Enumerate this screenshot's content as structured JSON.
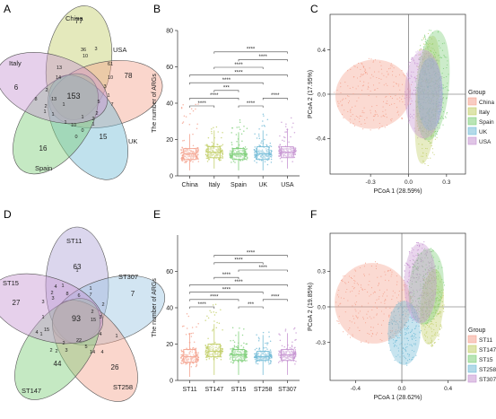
{
  "panel_letters": [
    "A",
    "B",
    "C",
    "D",
    "E",
    "F"
  ],
  "colors": {
    "China": "#f4a38f",
    "Italy": "#c3cf6a",
    "Spain": "#7fcf7a",
    "UK": "#74bcd7",
    "USA": "#c796d2",
    "ST11": "#f4a38f",
    "ST147": "#c3cf6a",
    "ST15": "#7fcf7a",
    "ST258": "#74bcd7",
    "ST307": "#c796d2"
  },
  "chart_data": [
    {
      "panel": "A",
      "type": "venn",
      "sets": [
        "China",
        "USA",
        "UK",
        "Spain",
        "Italy"
      ],
      "unique": {
        "China": 77,
        "USA": 78,
        "UK": 15,
        "Spain": 16,
        "Italy": 6
      },
      "core": 153,
      "region_counts": [
        "3",
        "10",
        "36",
        "61",
        "13",
        "10",
        "14",
        "3",
        "5",
        "2",
        "7",
        "13",
        "2",
        "1",
        "2",
        "2",
        "1",
        "1",
        "10",
        "0",
        "1",
        "1",
        "1",
        "8",
        "1",
        "0"
      ]
    },
    {
      "panel": "B",
      "type": "box",
      "categories": [
        "China",
        "Italy",
        "Spain",
        "UK",
        "USA"
      ],
      "ylabel": "The number of ARGs",
      "ylim": [
        0,
        80
      ],
      "yticks": [
        0,
        20,
        40,
        60,
        80
      ],
      "median": [
        12,
        13,
        12,
        12,
        13
      ],
      "q1": [
        9,
        10,
        9,
        9,
        10
      ],
      "q3": [
        15,
        16,
        15,
        16,
        16
      ],
      "whisker_high": [
        23,
        25,
        24,
        25,
        26
      ],
      "whisker_low": [
        3,
        4,
        3,
        3,
        4
      ],
      "jitter_max": [
        40,
        27,
        32,
        35,
        33
      ],
      "significance": [
        {
          "pair": [
            "China",
            "Italy"
          ],
          "label": "****"
        },
        {
          "pair": [
            "China",
            "Spain"
          ],
          "label": "****"
        },
        {
          "pair": [
            "Italy",
            "Spain"
          ],
          "label": "***"
        },
        {
          "pair": [
            "China",
            "UK"
          ],
          "label": "****"
        },
        {
          "pair": [
            "China",
            "USA"
          ],
          "label": "****"
        },
        {
          "pair": [
            "Italy",
            "UK"
          ],
          "label": "****"
        },
        {
          "pair": [
            "Spain",
            "UK"
          ],
          "label": "****"
        },
        {
          "pair": [
            "Spain",
            "USA"
          ],
          "label": "****"
        },
        {
          "pair": [
            "Italy",
            "USA"
          ],
          "label": "****"
        },
        {
          "pair": [
            "UK",
            "USA"
          ],
          "label": "****"
        }
      ]
    },
    {
      "panel": "C",
      "type": "scatter",
      "xlabel": "PCoA 1 (28.59%)",
      "ylabel": "PCoA 2 (17.95%)",
      "xticks": [
        "-0.3",
        "0.0",
        "0.3"
      ],
      "xtick_values": [
        -0.3,
        0.0,
        0.3
      ],
      "yticks": [
        "0.4",
        "0.0",
        "-0.4"
      ],
      "ytick_values": [
        0.4,
        0.0,
        -0.4
      ],
      "xlim": [
        -0.62,
        0.45
      ],
      "ylim": [
        -0.72,
        0.72
      ],
      "legend_title": "Group",
      "legend_position": "right",
      "groups": [
        {
          "name": "China",
          "center": [
            -0.28,
            0.0
          ],
          "rx": 0.3,
          "ry": 0.31,
          "rot": -15
        },
        {
          "name": "Italy",
          "center": [
            0.15,
            -0.05
          ],
          "rx": 0.09,
          "ry": 0.58,
          "rot": 5
        },
        {
          "name": "Spain",
          "center": [
            0.19,
            0.08
          ],
          "rx": 0.13,
          "ry": 0.5,
          "rot": 5
        },
        {
          "name": "UK",
          "center": [
            0.17,
            0.0
          ],
          "rx": 0.1,
          "ry": 0.33,
          "rot": 0
        },
        {
          "name": "USA",
          "center": [
            0.12,
            0.0
          ],
          "rx": 0.15,
          "ry": 0.4,
          "rot": 0
        }
      ]
    },
    {
      "panel": "D",
      "type": "venn",
      "sets": [
        "ST11",
        "ST307",
        "ST258",
        "ST147",
        "ST15"
      ],
      "unique": {
        "ST11": 63,
        "ST307": 7,
        "ST258": 26,
        "ST147": 44,
        "ST15": 27
      },
      "core": 93,
      "region_counts": [
        "8",
        "6",
        "7",
        "2",
        "2",
        "3",
        "15",
        "4",
        "22",
        "2",
        "3",
        "5",
        "14",
        "4",
        "2",
        "2",
        "1",
        "15",
        "4",
        "4",
        "3",
        "1",
        "2",
        "3",
        "1",
        "1",
        "1",
        "1"
      ]
    },
    {
      "panel": "E",
      "type": "box",
      "categories": [
        "ST11",
        "ST147",
        "ST15",
        "ST258",
        "ST307"
      ],
      "ylabel": "The number of ARGs",
      "ylim": [
        0,
        80
      ],
      "yticks": [
        0,
        20,
        40,
        60
      ],
      "median": [
        13,
        16,
        14,
        13,
        14
      ],
      "q1": [
        10,
        13,
        11,
        11,
        11
      ],
      "q3": [
        17,
        20,
        17,
        16,
        17
      ],
      "whisker_high": [
        26,
        31,
        27,
        25,
        26
      ],
      "whisker_low": [
        2,
        3,
        3,
        3,
        3
      ],
      "jitter_max": [
        38,
        42,
        30,
        27,
        29
      ],
      "significance": [
        {
          "pair": [
            "ST11",
            "ST147"
          ],
          "label": "****"
        },
        {
          "pair": [
            "ST11",
            "ST15"
          ],
          "label": "****"
        },
        {
          "pair": [
            "ST11",
            "ST258"
          ],
          "label": "****"
        },
        {
          "pair": [
            "ST11",
            "ST307"
          ],
          "label": "****"
        },
        {
          "pair": [
            "ST147",
            "ST15"
          ],
          "label": "****"
        },
        {
          "pair": [
            "ST15",
            "ST258"
          ],
          "label": "***"
        },
        {
          "pair": [
            "ST15",
            "ST307"
          ],
          "label": "****"
        },
        {
          "pair": [
            "ST147",
            "ST258"
          ],
          "label": "****"
        },
        {
          "pair": [
            "ST147",
            "ST307"
          ],
          "label": "****"
        },
        {
          "pair": [
            "ST258",
            "ST307"
          ],
          "label": "****"
        }
      ]
    },
    {
      "panel": "F",
      "type": "scatter",
      "xlabel": "PCoA 1 (28.62%)",
      "ylabel": "PCoA 2 (19.85%)",
      "xticks": [
        "-0.4",
        "0.0",
        "0.4"
      ],
      "xtick_values": [
        -0.4,
        0.0,
        0.4
      ],
      "yticks": [
        "0.3",
        "0.0",
        "-0.3"
      ],
      "ytick_values": [
        0.3,
        0.0,
        -0.3
      ],
      "xlim": [
        -0.62,
        0.55
      ],
      "ylim": [
        -0.62,
        0.62
      ],
      "legend_title": "Group",
      "legend_position": "right",
      "groups": [
        {
          "name": "ST11",
          "center": [
            -0.25,
            0.03
          ],
          "rx": 0.33,
          "ry": 0.34,
          "rot": -10
        },
        {
          "name": "ST147",
          "center": [
            0.26,
            0.0
          ],
          "rx": 0.1,
          "ry": 0.32,
          "rot": 5
        },
        {
          "name": "ST15",
          "center": [
            0.21,
            0.17
          ],
          "rx": 0.15,
          "ry": 0.32,
          "rot": 5
        },
        {
          "name": "ST258",
          "center": [
            0.02,
            -0.22
          ],
          "rx": 0.14,
          "ry": 0.27,
          "rot": 0
        },
        {
          "name": "ST307",
          "center": [
            0.16,
            0.2
          ],
          "rx": 0.14,
          "ry": 0.34,
          "rot": 0
        }
      ]
    }
  ]
}
